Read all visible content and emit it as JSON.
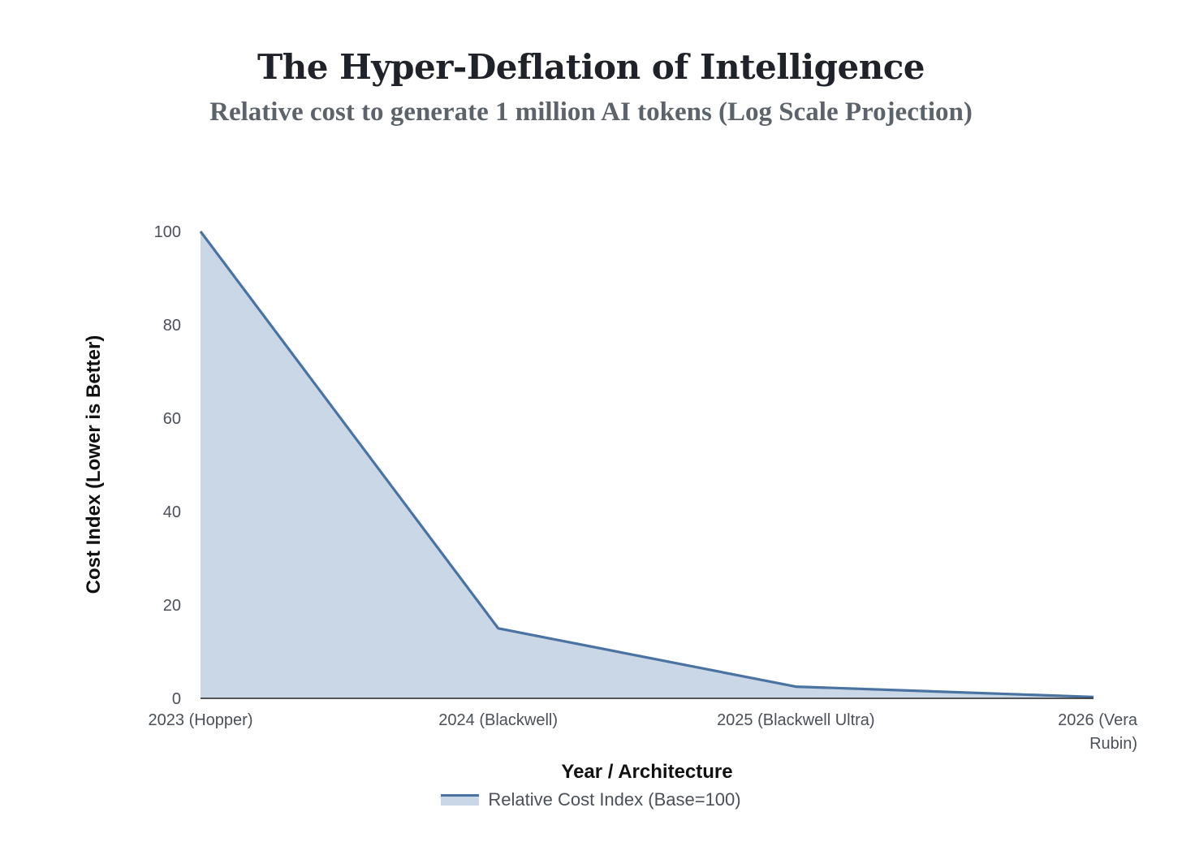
{
  "header": {
    "title": "The Hyper-Deflation of Intelligence",
    "subtitle": "Relative cost to generate 1 million AI tokens (Log Scale Projection)"
  },
  "chart_data": {
    "type": "area",
    "title": "The Hyper-Deflation of Intelligence",
    "subtitle": "Relative cost to generate 1 million AI tokens (Log Scale Projection)",
    "xlabel": "Year / Architecture",
    "ylabel": "Cost Index (Lower is Better)",
    "categories": [
      "2023 (Hopper)",
      "2024 (Blackwell)",
      "2025 (Blackwell Ultra)",
      "2026 (Vera Rubin)"
    ],
    "category_lines": [
      [
        "2023 (Hopper)"
      ],
      [
        "2024 (Blackwell)"
      ],
      [
        "2025 (Blackwell Ultra)"
      ],
      [
        "2026 (Vera",
        "Rubin)"
      ]
    ],
    "series": [
      {
        "name": "Relative Cost Index (Base=100)",
        "values": [
          100,
          15,
          2.5,
          0.3
        ],
        "line_color": "#4a73a2",
        "fill_color": "#c9d7e6"
      }
    ],
    "ylim": [
      0,
      100
    ],
    "yticks": [
      0,
      20,
      40,
      60,
      80,
      100
    ],
    "grid": false,
    "legend": "bottom-center"
  }
}
